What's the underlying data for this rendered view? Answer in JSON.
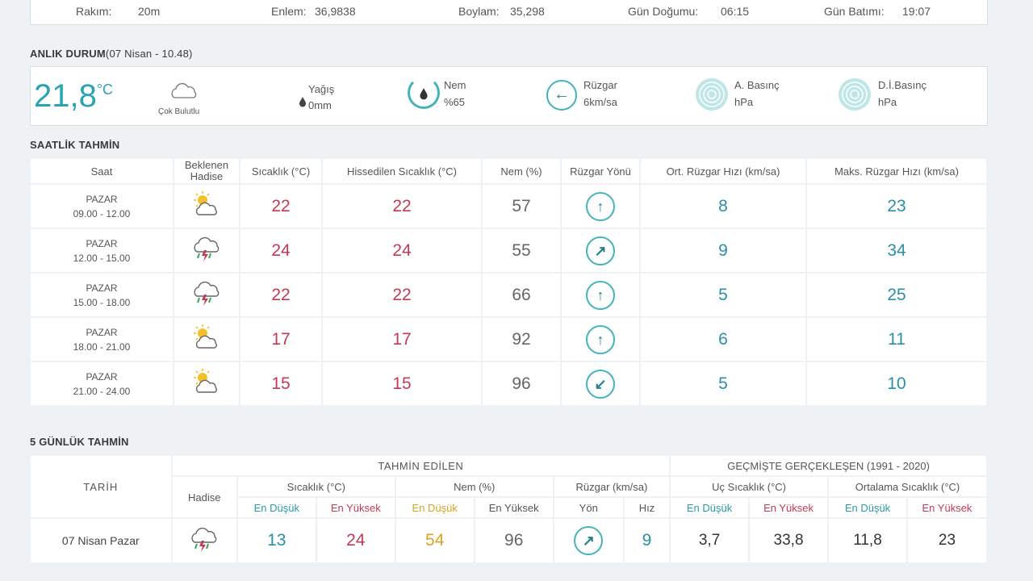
{
  "station": {
    "elevation_label": "Rakım:",
    "elevation": "20m",
    "lat_label": "Enlem:",
    "lat": "36,9838",
    "lon_label": "Boylam:",
    "lon": "35,298",
    "sunrise_label": "Gün Doğumu:",
    "sunrise": "06:15",
    "sunset_label": "Gün Batımı:",
    "sunset": "19:07"
  },
  "current": {
    "title": "ANLIK DURUM",
    "subtitle": "(07 Nisan - 10.48)",
    "temp": "21,8",
    "temp_unit": "°C",
    "condition": "Çok Bulutlu",
    "rain_label": "Yağış",
    "rain": "0mm",
    "humidity_label": "Nem",
    "humidity": "%65",
    "wind_label": "Rüzgar",
    "wind": "6km/sa",
    "pressure_label": "A. Basınç",
    "pressure_unit": "hPa",
    "sea_pressure_label": "D.İ.Basınç",
    "sea_pressure_unit": "hPa"
  },
  "hourly": {
    "title": "SAATLİK TAHMİN",
    "headers": [
      "Saat",
      "Beklenen Hadise",
      "Sıcaklık (°C)",
      "Hissedilen Sıcaklık (°C)",
      "Nem (%)",
      "Rüzgar Yönü",
      "Ort. Rüzgar Hızı (km/sa)",
      "Maks. Rüzgar Hızı (km/sa)"
    ],
    "rows": [
      {
        "day": "PAZAR",
        "time": "09.00 - 12.00",
        "icon": "partly-sunny-icon",
        "temp": "22",
        "feels": "22",
        "hum": "57",
        "dir": "↑",
        "avg": "8",
        "max": "23"
      },
      {
        "day": "PAZAR",
        "time": "12.00 - 15.00",
        "icon": "thunderstorm-icon",
        "temp": "24",
        "feels": "24",
        "hum": "55",
        "dir": "↗",
        "avg": "9",
        "max": "34"
      },
      {
        "day": "PAZAR",
        "time": "15.00 - 18.00",
        "icon": "thunderstorm-icon",
        "temp": "22",
        "feels": "22",
        "hum": "66",
        "dir": "↑",
        "avg": "5",
        "max": "25"
      },
      {
        "day": "PAZAR",
        "time": "18.00 - 21.00",
        "icon": "partly-sunny-icon",
        "temp": "17",
        "feels": "17",
        "hum": "92",
        "dir": "↑",
        "avg": "6",
        "max": "11"
      },
      {
        "day": "PAZAR",
        "time": "21.00 - 24.00",
        "icon": "partly-sunny-icon",
        "temp": "15",
        "feels": "15",
        "hum": "96",
        "dir": "↙",
        "avg": "5",
        "max": "10"
      }
    ]
  },
  "daily": {
    "title": "5 GÜNLÜK TAHMİN",
    "forecast_header": "TAHMİN EDİLEN",
    "history_header": "GEÇMİŞTE GERÇEKLEŞEN (1991 - 2020)",
    "date_header": "TARİH",
    "event_header": "Hadise",
    "temp_header": "Sıcaklık (°C)",
    "hum_header": "Nem (%)",
    "wind_header": "Rüzgar (km/sa)",
    "extreme_header": "Uç Sıcaklık (°C)",
    "avg_header": "Ortalama Sıcaklık (°C)",
    "low": "En Düşük",
    "high": "En Yüksek",
    "dir": "Yön",
    "speed": "Hız",
    "rows": [
      {
        "date": "07 Nisan Pazar",
        "icon": "thunderstorm-icon",
        "tmin": "13",
        "tmax": "24",
        "hmin": "54",
        "hmax": "96",
        "dir": "↗",
        "speed": "9",
        "xmin": "3,7",
        "xmax": "33,8",
        "amin": "11,8",
        "amax": "23"
      }
    ]
  },
  "colors": {
    "teal": "#2aa3b3",
    "red": "#c43a55",
    "yellow": "#d9a320"
  }
}
